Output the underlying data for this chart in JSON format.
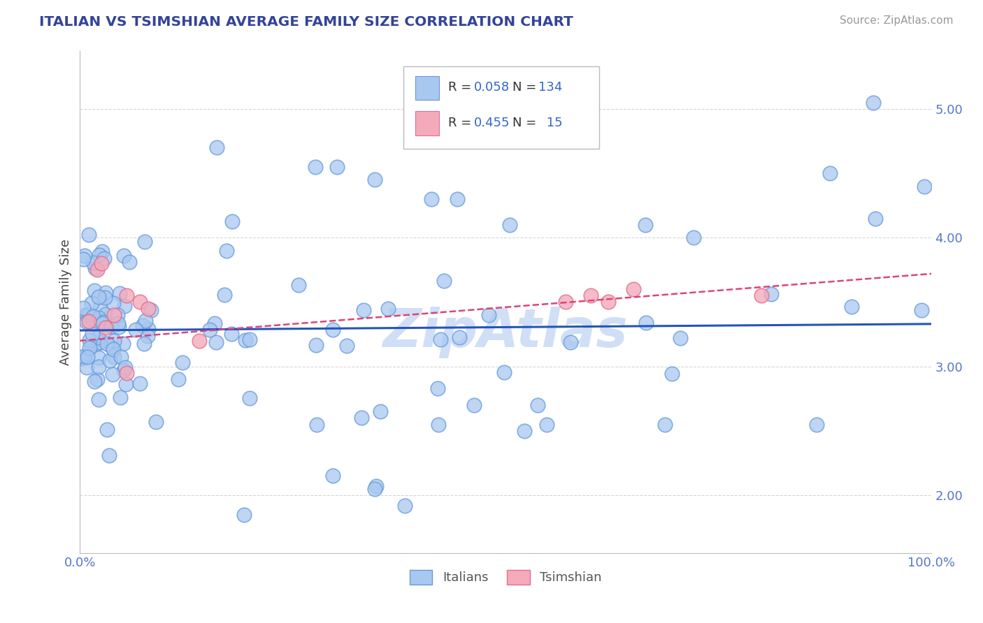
{
  "title": "ITALIAN VS TSIMSHIAN AVERAGE FAMILY SIZE CORRELATION CHART",
  "source_text": "Source: ZipAtlas.com",
  "ylabel": "Average Family Size",
  "xlim": [
    0.0,
    1.0
  ],
  "ylim": [
    1.55,
    5.45
  ],
  "yticks": [
    2.0,
    3.0,
    4.0,
    5.0
  ],
  "xticklabels": [
    "0.0%",
    "100.0%"
  ],
  "yticklabels": [
    "2.00",
    "3.00",
    "4.00",
    "5.00"
  ],
  "italian_color": "#a8c8f0",
  "italian_edge_color": "#6699dd",
  "tsimshian_color": "#f4aabb",
  "tsimshian_edge_color": "#e07090",
  "italian_line_color": "#2255bb",
  "tsimshian_line_color": "#dd4477",
  "grid_color": "#cccccc",
  "title_color": "#334499",
  "axis_color": "#5577cc",
  "legend_R_N_color": "#3366cc",
  "background_color": "#ffffff",
  "watermark_color": "#d0dff5",
  "italian_R": 0.058,
  "italian_N": 134,
  "tsimshian_R": 0.455,
  "tsimshian_N": 15,
  "it_intercept": 3.28,
  "it_slope": 0.05,
  "ts_intercept": 3.2,
  "ts_slope": 0.52
}
